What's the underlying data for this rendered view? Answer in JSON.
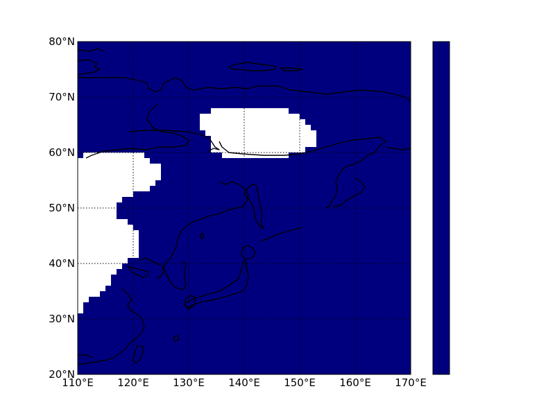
{
  "colors": {
    "ocean_fill": "#00007f",
    "masked_fill": "#ffffff",
    "coastline": "#000000",
    "grid": "#000000",
    "colorbar_fill": "#00007f"
  },
  "map": {
    "projection": "cylindrical (lat/lon)",
    "lon_range": [
      110,
      170
    ],
    "lat_range": [
      20,
      80
    ],
    "grid": "dotted",
    "lon_ticks": [
      "110°E",
      "120°E",
      "130°E",
      "140°E",
      "150°E",
      "160°E",
      "170°E"
    ],
    "lat_ticks": [
      "20°N",
      "30°N",
      "40°N",
      "50°N",
      "60°N",
      "70°N",
      "80°N"
    ]
  },
  "colorbar": {
    "tick_labels": []
  }
}
